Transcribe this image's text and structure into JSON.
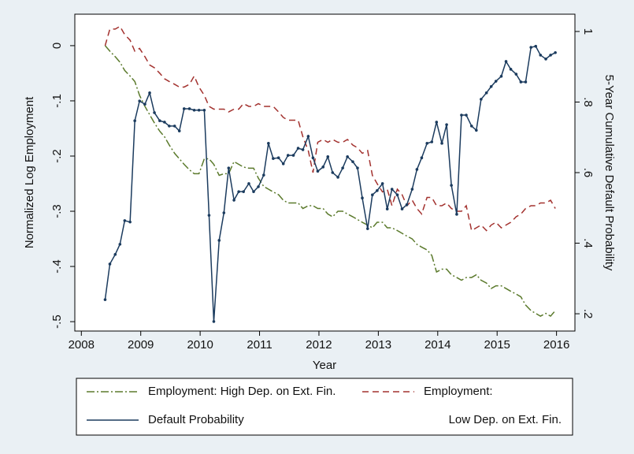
{
  "chart_data": {
    "type": "line",
    "x_label": "Year",
    "y_label": "Normalized Log Employment",
    "y2_label": "5-Year Cumulative Default Probability",
    "xlim": [
      2007.89,
      2016.31
    ],
    "xticks": [
      2008,
      2009,
      2010,
      2011,
      2012,
      2013,
      2014,
      2015,
      2016
    ],
    "ylim": [
      -0.517,
      0.057
    ],
    "yticks": [
      {
        "value": 0,
        "label": "0"
      },
      {
        "value": -0.1,
        "label": "-.1"
      },
      {
        "value": -0.2,
        "label": "-.2"
      },
      {
        "value": -0.3,
        "label": "-.3"
      },
      {
        "value": -0.4,
        "label": "-.4"
      },
      {
        "value": -0.5,
        "label": "-.5"
      }
    ],
    "y2lim": [
      0.151,
      1.049
    ],
    "y2ticks": [
      1,
      {
        "value": 0.8,
        "label": ".8"
      },
      {
        "value": 0.6,
        "label": ".6"
      },
      {
        "value": 0.4,
        "label": ".4"
      },
      {
        "value": 0.2,
        "label": ".2"
      }
    ],
    "grid": false,
    "legend": "bottom",
    "x": [
      2008.4,
      2008.48,
      2008.57,
      2008.65,
      2008.73,
      2008.82,
      2008.9,
      2008.98,
      2009.07,
      2009.15,
      2009.23,
      2009.32,
      2009.4,
      2009.48,
      2009.57,
      2009.65,
      2009.73,
      2009.82,
      2009.9,
      2009.98,
      2010.07,
      2010.15,
      2010.23,
      2010.32,
      2010.4,
      2010.48,
      2010.57,
      2010.65,
      2010.73,
      2010.82,
      2010.9,
      2010.98,
      2011.07,
      2011.15,
      2011.23,
      2011.32,
      2011.4,
      2011.48,
      2011.57,
      2011.65,
      2011.73,
      2011.82,
      2011.9,
      2011.98,
      2012.07,
      2012.15,
      2012.23,
      2012.32,
      2012.4,
      2012.48,
      2012.57,
      2012.65,
      2012.73,
      2012.82,
      2012.9,
      2012.98,
      2013.07,
      2013.15,
      2013.23,
      2013.32,
      2013.4,
      2013.48,
      2013.57,
      2013.65,
      2013.73,
      2013.82,
      2013.9,
      2013.98,
      2014.07,
      2014.15,
      2014.23,
      2014.32,
      2014.4,
      2014.48,
      2014.57,
      2014.65,
      2014.73,
      2014.82,
      2014.9,
      2014.98,
      2015.07,
      2015.15,
      2015.23,
      2015.32,
      2015.4,
      2015.48,
      2015.57,
      2015.65,
      2015.73,
      2015.82,
      2015.9,
      2015.98
    ],
    "series": [
      {
        "name": "Employment: High Dep. on Ext. Fin.",
        "color": "#5b7a2c",
        "dash": "10,3,2,3",
        "values": [
          0,
          -0.01,
          -0.02,
          -0.03,
          -0.045,
          -0.055,
          -0.065,
          -0.09,
          -0.11,
          -0.125,
          -0.14,
          -0.155,
          -0.165,
          -0.18,
          -0.195,
          -0.205,
          -0.215,
          -0.225,
          -0.232,
          -0.232,
          -0.205,
          -0.205,
          -0.215,
          -0.235,
          -0.232,
          -0.232,
          -0.21,
          -0.215,
          -0.22,
          -0.222,
          -0.222,
          -0.24,
          -0.255,
          -0.26,
          -0.265,
          -0.27,
          -0.28,
          -0.285,
          -0.285,
          -0.285,
          -0.295,
          -0.29,
          -0.29,
          -0.295,
          -0.295,
          -0.305,
          -0.31,
          -0.3,
          -0.3,
          -0.305,
          -0.31,
          -0.315,
          -0.32,
          -0.325,
          -0.33,
          -0.32,
          -0.32,
          -0.33,
          -0.33,
          -0.335,
          -0.34,
          -0.345,
          -0.35,
          -0.36,
          -0.365,
          -0.37,
          -0.38,
          -0.41,
          -0.405,
          -0.405,
          -0.415,
          -0.42,
          -0.425,
          -0.42,
          -0.42,
          -0.415,
          -0.425,
          -0.43,
          -0.44,
          -0.435,
          -0.435,
          -0.44,
          -0.445,
          -0.45,
          -0.455,
          -0.47,
          -0.48,
          -0.485,
          -0.49,
          -0.485,
          -0.49,
          -0.48
        ]
      },
      {
        "name": [
          "Employment:",
          "Low Dep. on Ext. Fin."
        ],
        "color": "#a3322f",
        "dash": "8,5",
        "values": [
          0,
          0.03,
          0.03,
          0.035,
          0.02,
          0.01,
          -0.01,
          -0.005,
          -0.02,
          -0.035,
          -0.04,
          -0.05,
          -0.06,
          -0.065,
          -0.07,
          -0.075,
          -0.075,
          -0.07,
          -0.055,
          -0.075,
          -0.09,
          -0.11,
          -0.115,
          -0.115,
          -0.115,
          -0.12,
          -0.115,
          -0.115,
          -0.105,
          -0.11,
          -0.11,
          -0.105,
          -0.11,
          -0.11,
          -0.11,
          -0.12,
          -0.13,
          -0.135,
          -0.135,
          -0.135,
          -0.165,
          -0.19,
          -0.23,
          -0.175,
          -0.17,
          -0.175,
          -0.17,
          -0.175,
          -0.175,
          -0.17,
          -0.18,
          -0.185,
          -0.195,
          -0.19,
          -0.235,
          -0.25,
          -0.265,
          -0.26,
          -0.29,
          -0.26,
          -0.27,
          -0.29,
          -0.28,
          -0.295,
          -0.305,
          -0.275,
          -0.275,
          -0.29,
          -0.29,
          -0.285,
          -0.295,
          -0.3,
          -0.3,
          -0.29,
          -0.335,
          -0.33,
          -0.325,
          -0.335,
          -0.325,
          -0.32,
          -0.33,
          -0.325,
          -0.32,
          -0.31,
          -0.305,
          -0.295,
          -0.29,
          -0.29,
          -0.285,
          -0.285,
          -0.28,
          -0.295
        ]
      },
      {
        "name": "Default Probability",
        "color": "#1b3b5e",
        "axis": "y2",
        "markers": true,
        "values": [
          0.24,
          0.341,
          0.368,
          0.397,
          0.464,
          0.46,
          0.747,
          0.803,
          0.794,
          0.826,
          0.77,
          0.747,
          0.743,
          0.732,
          0.732,
          0.718,
          0.781,
          0.781,
          0.777,
          0.777,
          0.777,
          0.479,
          0.178,
          0.408,
          0.486,
          0.613,
          0.522,
          0.546,
          0.546,
          0.569,
          0.546,
          0.56,
          0.593,
          0.683,
          0.64,
          0.642,
          0.625,
          0.649,
          0.649,
          0.669,
          0.665,
          0.703,
          0.642,
          0.604,
          0.616,
          0.645,
          0.6,
          0.587,
          0.613,
          0.645,
          0.631,
          0.613,
          0.528,
          0.441,
          0.537,
          0.549,
          0.569,
          0.497,
          0.553,
          0.537,
          0.497,
          0.509,
          0.553,
          0.609,
          0.642,
          0.683,
          0.687,
          0.743,
          0.683,
          0.736,
          0.564,
          0.482,
          0.763,
          0.763,
          0.732,
          0.72,
          0.808,
          0.826,
          0.844,
          0.859,
          0.873,
          0.915,
          0.893,
          0.879,
          0.857,
          0.857,
          0.955,
          0.958,
          0.933,
          0.922,
          0.933,
          0.94
        ]
      }
    ]
  }
}
